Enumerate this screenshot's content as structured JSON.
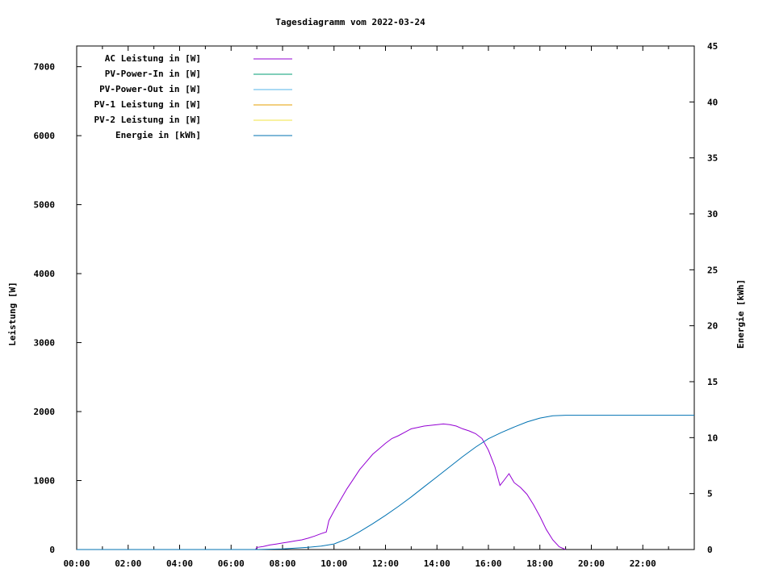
{
  "chart_data": {
    "type": "line",
    "title": "Tagesdiagramm vom 2022-03-24",
    "ylabel": "Leistung [W]",
    "y2label": "Energie [kWh]",
    "x_ticks": [
      "00:00",
      "02:00",
      "04:00",
      "06:00",
      "08:00",
      "10:00",
      "12:00",
      "14:00",
      "16:00",
      "18:00",
      "20:00",
      "22:00"
    ],
    "xlim_hours": [
      0,
      24
    ],
    "ylim": [
      0,
      7300
    ],
    "y_ticks": [
      0,
      1000,
      2000,
      3000,
      4000,
      5000,
      6000,
      7000
    ],
    "y2lim": [
      0,
      45
    ],
    "y2_ticks": [
      0,
      5,
      10,
      15,
      20,
      25,
      30,
      35,
      40,
      45
    ],
    "legend_position": "top-left",
    "grid": false,
    "series": [
      {
        "name": "AC Leistung in [W]",
        "axis": "left",
        "color": "#9400d3",
        "points": [
          [
            6.95,
            0
          ],
          [
            7.0,
            30
          ],
          [
            7.25,
            45
          ],
          [
            7.5,
            65
          ],
          [
            7.75,
            80
          ],
          [
            8.0,
            95
          ],
          [
            8.25,
            110
          ],
          [
            8.5,
            125
          ],
          [
            8.75,
            140
          ],
          [
            9.0,
            165
          ],
          [
            9.25,
            195
          ],
          [
            9.5,
            230
          ],
          [
            9.7,
            255
          ],
          [
            9.8,
            420
          ],
          [
            10.0,
            560
          ],
          [
            10.25,
            720
          ],
          [
            10.5,
            880
          ],
          [
            10.75,
            1020
          ],
          [
            11.0,
            1160
          ],
          [
            11.25,
            1270
          ],
          [
            11.5,
            1380
          ],
          [
            11.75,
            1460
          ],
          [
            12.0,
            1540
          ],
          [
            12.25,
            1610
          ],
          [
            12.5,
            1650
          ],
          [
            12.75,
            1700
          ],
          [
            13.0,
            1750
          ],
          [
            13.25,
            1770
          ],
          [
            13.5,
            1790
          ],
          [
            13.75,
            1800
          ],
          [
            14.0,
            1810
          ],
          [
            14.25,
            1820
          ],
          [
            14.5,
            1810
          ],
          [
            14.75,
            1790
          ],
          [
            15.0,
            1750
          ],
          [
            15.25,
            1720
          ],
          [
            15.5,
            1680
          ],
          [
            15.75,
            1610
          ],
          [
            16.0,
            1440
          ],
          [
            16.25,
            1200
          ],
          [
            16.45,
            930
          ],
          [
            16.6,
            1000
          ],
          [
            16.8,
            1100
          ],
          [
            17.0,
            970
          ],
          [
            17.25,
            900
          ],
          [
            17.5,
            800
          ],
          [
            17.75,
            650
          ],
          [
            18.0,
            480
          ],
          [
            18.25,
            290
          ],
          [
            18.5,
            140
          ],
          [
            18.75,
            40
          ],
          [
            19.0,
            0
          ]
        ]
      },
      {
        "name": "PV-Power-In in [W]",
        "axis": "left",
        "color": "#009e73",
        "points": []
      },
      {
        "name": "PV-Power-Out in [W]",
        "axis": "left",
        "color": "#56b4e9",
        "points": []
      },
      {
        "name": "PV-1 Leistung in [W]",
        "axis": "left",
        "color": "#e69f00",
        "points": []
      },
      {
        "name": "PV-2 Leistung in [W]",
        "axis": "left",
        "color": "#f0e442",
        "points": []
      },
      {
        "name": "Energie in [kWh]",
        "axis": "right",
        "color": "#0072b2",
        "points": [
          [
            0,
            0
          ],
          [
            7.0,
            0
          ],
          [
            8.0,
            0.05
          ],
          [
            9.0,
            0.2
          ],
          [
            9.5,
            0.3
          ],
          [
            10.0,
            0.5
          ],
          [
            10.5,
            0.95
          ],
          [
            11.0,
            1.6
          ],
          [
            11.5,
            2.3
          ],
          [
            12.0,
            3.05
          ],
          [
            12.5,
            3.85
          ],
          [
            13.0,
            4.7
          ],
          [
            13.5,
            5.6
          ],
          [
            14.0,
            6.5
          ],
          [
            14.5,
            7.4
          ],
          [
            15.0,
            8.3
          ],
          [
            15.5,
            9.15
          ],
          [
            16.0,
            9.9
          ],
          [
            16.5,
            10.45
          ],
          [
            17.0,
            10.95
          ],
          [
            17.5,
            11.4
          ],
          [
            18.0,
            11.75
          ],
          [
            18.5,
            11.95
          ],
          [
            19.0,
            12.0
          ],
          [
            24.0,
            12.0
          ]
        ]
      }
    ]
  }
}
